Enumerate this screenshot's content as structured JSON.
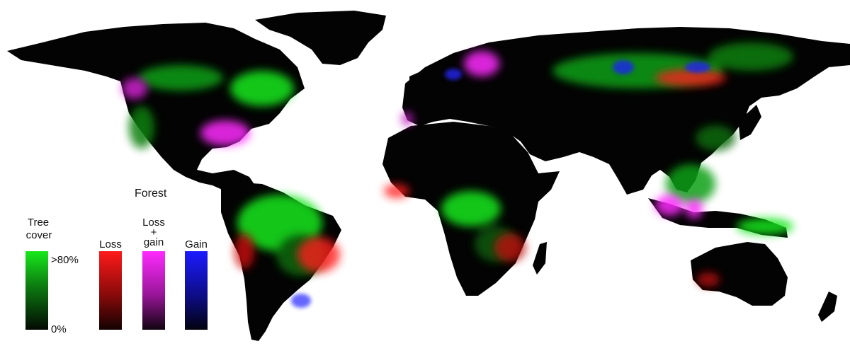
{
  "legend": {
    "title": "Forest",
    "tree_cover": {
      "label_line1": "Tree",
      "label_line2": "cover",
      "max_label": ">80%",
      "min_label": "0%",
      "color": "#18e81c"
    },
    "loss": {
      "label": "Loss",
      "color": "#ff1a1a"
    },
    "loss_gain": {
      "label_line1": "Loss",
      "label_plus": "+",
      "label_line2": "gain",
      "color": "#ff2bff"
    },
    "gain": {
      "label": "Gain",
      "color": "#1b1bff"
    }
  },
  "colors": {
    "background": "#ffffff",
    "land": "#030303",
    "tree_cover": "#18e81c",
    "loss": "#ff1a1a",
    "loss_gain": "#ff2bff",
    "gain": "#1b1bff"
  }
}
